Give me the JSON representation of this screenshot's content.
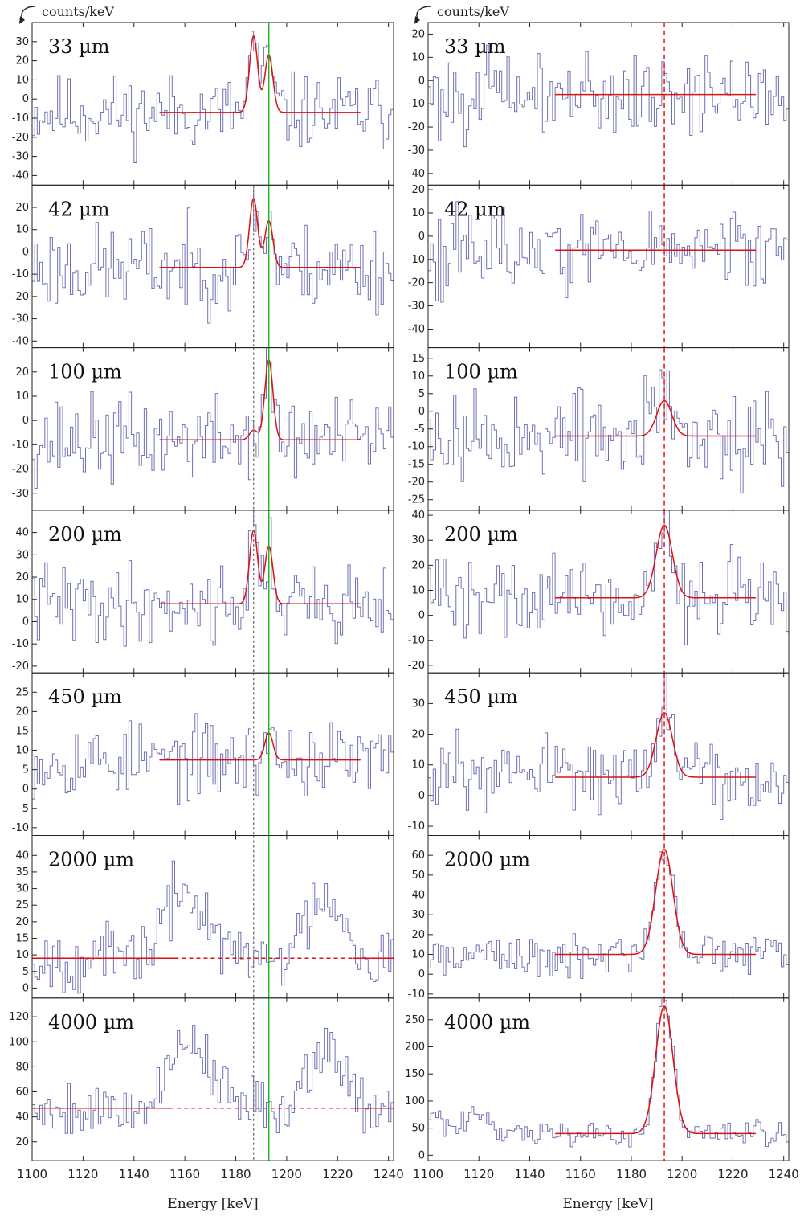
{
  "y_unit": "counts/keV",
  "x_title": "Energy [keV]",
  "x_ticks": [
    1100,
    1120,
    1140,
    1160,
    1180,
    1200,
    1220,
    1240
  ],
  "colors": {
    "data": "#5558a8",
    "fit": "#e01010",
    "green_line": "#18b818",
    "grey_line": "#777777",
    "red_line": "#e82020"
  },
  "chart_data": [
    {
      "type": "line",
      "column": "left",
      "label": "33 µm",
      "xlim": [
        1100,
        1242
      ],
      "ylim": [
        -45,
        40
      ],
      "yticks": [
        -40,
        -30,
        -20,
        -10,
        0,
        10,
        20,
        30
      ],
      "fit": {
        "base": -7,
        "x0": 1150,
        "x1": 1229,
        "peaks": [
          {
            "mu": 1187,
            "sigma": 1.6,
            "amp": 40
          },
          {
            "mu": 1193,
            "sigma": 1.6,
            "amp": 30
          }
        ]
      },
      "vlines": [
        {
          "x": 1193,
          "style": "green"
        }
      ],
      "seed": 11,
      "noise": 12
    },
    {
      "type": "line",
      "column": "left",
      "label": "42 µm",
      "xlim": [
        1100,
        1242
      ],
      "ylim": [
        -43,
        30
      ],
      "yticks": [
        -40,
        -30,
        -20,
        -10,
        0,
        10,
        20
      ],
      "fit": {
        "base": -7,
        "x0": 1150,
        "x1": 1229,
        "peaks": [
          {
            "mu": 1187,
            "sigma": 1.6,
            "amp": 31
          },
          {
            "mu": 1193,
            "sigma": 1.6,
            "amp": 21
          }
        ]
      },
      "vlines": [
        {
          "x": 1187,
          "style": "grey"
        },
        {
          "x": 1193,
          "style": "green"
        }
      ],
      "seed": 23,
      "noise": 12
    },
    {
      "type": "line",
      "column": "left",
      "label": "100 µm",
      "xlim": [
        1100,
        1242
      ],
      "ylim": [
        -37,
        30
      ],
      "yticks": [
        -30,
        -20,
        -10,
        0,
        10,
        20
      ],
      "fit": {
        "base": -8,
        "x0": 1150,
        "x1": 1229,
        "peaks": [
          {
            "mu": 1187,
            "sigma": 1.6,
            "amp": 4
          },
          {
            "mu": 1193,
            "sigma": 1.6,
            "amp": 33
          }
        ]
      },
      "vlines": [
        {
          "x": 1187,
          "style": "grey"
        },
        {
          "x": 1193,
          "style": "green"
        }
      ],
      "seed": 37,
      "noise": 11
    },
    {
      "type": "line",
      "column": "left",
      "label": "200 µm",
      "xlim": [
        1100,
        1242
      ],
      "ylim": [
        -23,
        50
      ],
      "yticks": [
        -20,
        -10,
        0,
        10,
        20,
        30,
        40
      ],
      "fit": {
        "base": 8,
        "x0": 1150,
        "x1": 1229,
        "peaks": [
          {
            "mu": 1187,
            "sigma": 1.6,
            "amp": 33
          },
          {
            "mu": 1193,
            "sigma": 1.6,
            "amp": 26
          }
        ]
      },
      "vlines": [
        {
          "x": 1187,
          "style": "grey"
        },
        {
          "x": 1193,
          "style": "green"
        }
      ],
      "seed": 41,
      "noise": 11
    },
    {
      "type": "line",
      "column": "left",
      "label": "450 µm",
      "xlim": [
        1100,
        1242
      ],
      "ylim": [
        -12,
        30
      ],
      "yticks": [
        -10,
        -5,
        0,
        5,
        10,
        15,
        20,
        25
      ],
      "fit": {
        "base": 7.5,
        "x0": 1150,
        "x1": 1229,
        "peaks": [
          {
            "mu": 1193,
            "sigma": 1.6,
            "amp": 7
          }
        ]
      },
      "vlines": [
        {
          "x": 1187,
          "style": "grey"
        },
        {
          "x": 1193,
          "style": "green"
        }
      ],
      "seed": 53,
      "noise": 6
    },
    {
      "type": "line",
      "column": "left",
      "label": "2000 µm",
      "xlim": [
        1100,
        1242
      ],
      "ylim": [
        -3,
        46
      ],
      "yticks": [
        0,
        5,
        10,
        15,
        20,
        25,
        30,
        35,
        40
      ],
      "fit": {
        "base": 9,
        "x0": 1100,
        "x1": 1242,
        "peaks": [],
        "dashed": [
          1156,
          1226
        ]
      },
      "vlines": [
        {
          "x": 1187,
          "style": "grey"
        },
        {
          "x": 1193,
          "style": "green"
        }
      ],
      "seed": 67,
      "noise": 6,
      "bumps": [
        {
          "mu": 1160,
          "sigma": 8,
          "amp": 20
        },
        {
          "mu": 1215,
          "sigma": 7,
          "amp": 20
        }
      ]
    },
    {
      "type": "line",
      "column": "left",
      "label": "4000 µm",
      "xlim": [
        1100,
        1242
      ],
      "ylim": [
        5,
        135
      ],
      "yticks": [
        20,
        40,
        60,
        80,
        100,
        120
      ],
      "fit": {
        "base": 47,
        "x0": 1100,
        "x1": 1242,
        "peaks": [],
        "dashed": [
          1154,
          1226
        ]
      },
      "vlines": [
        {
          "x": 1187,
          "style": "grey"
        },
        {
          "x": 1193,
          "style": "green"
        }
      ],
      "seed": 79,
      "noise": 14,
      "bumps": [
        {
          "mu": 1162,
          "sigma": 8,
          "amp": 55
        },
        {
          "mu": 1215,
          "sigma": 7,
          "amp": 50
        }
      ]
    },
    {
      "type": "line",
      "column": "right",
      "label": "33 µm",
      "xlim": [
        1100,
        1242
      ],
      "ylim": [
        -45,
        25
      ],
      "yticks": [
        -40,
        -30,
        -20,
        -10,
        0,
        10,
        20
      ],
      "fit": {
        "base": -6,
        "x0": 1150,
        "x1": 1229,
        "peaks": []
      },
      "vlines": [
        {
          "x": 1193,
          "style": "red"
        }
      ],
      "seed": 101,
      "noise": 11
    },
    {
      "type": "line",
      "column": "right",
      "label": "42 µm",
      "xlim": [
        1100,
        1242
      ],
      "ylim": [
        -48,
        22
      ],
      "yticks": [
        -40,
        -30,
        -20,
        -10,
        0,
        10,
        20
      ],
      "fit": {
        "base": -6,
        "x0": 1150,
        "x1": 1229,
        "peaks": []
      },
      "vlines": [
        {
          "x": 1193,
          "style": "red"
        }
      ],
      "seed": 113,
      "noise": 11
    },
    {
      "type": "line",
      "column": "right",
      "label": "100 µm",
      "xlim": [
        1100,
        1242
      ],
      "ylim": [
        -28,
        18
      ],
      "yticks": [
        -25,
        -20,
        -15,
        -10,
        -5,
        0,
        5,
        10,
        15
      ],
      "fit": {
        "base": -7,
        "x0": 1150,
        "x1": 1229,
        "peaks": [
          {
            "mu": 1193,
            "sigma": 3,
            "amp": 10
          }
        ]
      },
      "vlines": [
        {
          "x": 1193,
          "style": "red"
        }
      ],
      "seed": 127,
      "noise": 8
    },
    {
      "type": "line",
      "column": "right",
      "label": "200 µm",
      "xlim": [
        1100,
        1242
      ],
      "ylim": [
        -23,
        42
      ],
      "yticks": [
        -20,
        -10,
        0,
        10,
        20,
        30,
        40
      ],
      "fit": {
        "base": 7,
        "x0": 1150,
        "x1": 1229,
        "peaks": [
          {
            "mu": 1193,
            "sigma": 3.2,
            "amp": 29
          }
        ]
      },
      "vlines": [
        {
          "x": 1193,
          "style": "red"
        }
      ],
      "seed": 139,
      "noise": 11
    },
    {
      "type": "line",
      "column": "right",
      "label": "450 µm",
      "xlim": [
        1100,
        1242
      ],
      "ylim": [
        -13,
        40
      ],
      "yticks": [
        -10,
        0,
        10,
        20,
        30
      ],
      "fit": {
        "base": 6,
        "x0": 1150,
        "x1": 1229,
        "peaks": [
          {
            "mu": 1193,
            "sigma": 3.2,
            "amp": 21
          }
        ]
      },
      "vlines": [
        {
          "x": 1193,
          "style": "red"
        }
      ],
      "seed": 151,
      "noise": 7
    },
    {
      "type": "line",
      "column": "right",
      "label": "2000 µm",
      "xlim": [
        1100,
        1242
      ],
      "ylim": [
        -12,
        70
      ],
      "yticks": [
        -10,
        0,
        10,
        20,
        30,
        40,
        50,
        60
      ],
      "fit": {
        "base": 10,
        "x0": 1150,
        "x1": 1229,
        "peaks": [
          {
            "mu": 1193,
            "sigma": 3.4,
            "amp": 53
          }
        ]
      },
      "vlines": [
        {
          "x": 1193,
          "style": "red"
        }
      ],
      "seed": 163,
      "noise": 6
    },
    {
      "type": "line",
      "column": "right",
      "label": "4000 µm",
      "xlim": [
        1100,
        1242
      ],
      "ylim": [
        -10,
        290
      ],
      "yticks": [
        0,
        50,
        100,
        150,
        200,
        250
      ],
      "fit": {
        "base": 40,
        "x0": 1150,
        "x1": 1229,
        "peaks": [
          {
            "mu": 1193,
            "sigma": 3.4,
            "amp": 235
          }
        ]
      },
      "vlines": [
        {
          "x": 1193,
          "style": "red"
        }
      ],
      "seed": 173,
      "noise": 14,
      "bumps": [
        {
          "mu": 1120,
          "sigma": 4,
          "amp": 45
        },
        {
          "mu": 1103,
          "sigma": 3,
          "amp": 40
        }
      ]
    }
  ]
}
